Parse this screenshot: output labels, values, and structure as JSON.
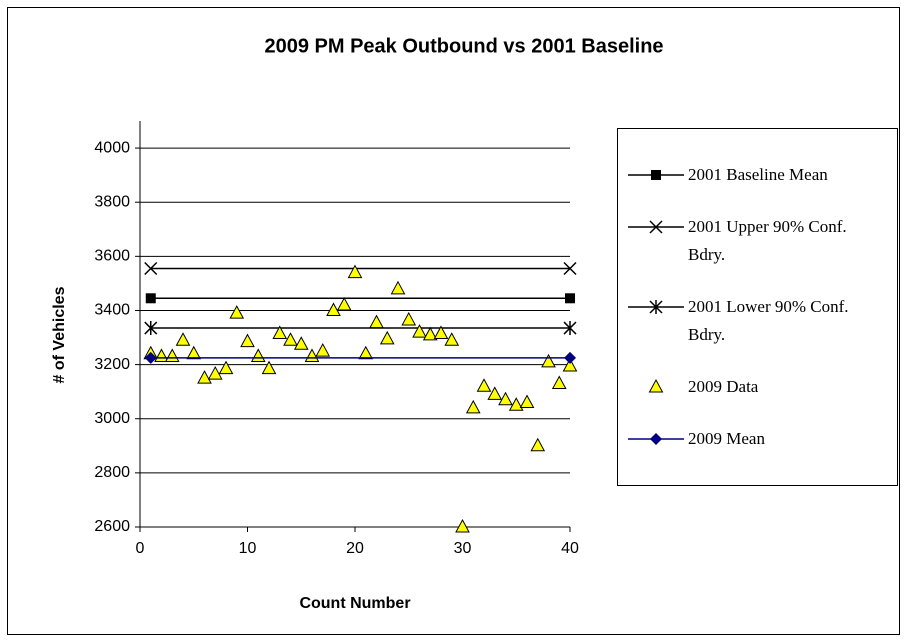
{
  "chart_data": {
    "type": "scatter",
    "title": "2009 PM Peak Outbound vs 2001 Baseline",
    "x_label": "Count Number",
    "y_label": "# of Vehicles",
    "xlim": [
      0,
      40
    ],
    "xticks": [
      0,
      10,
      20,
      30,
      40
    ],
    "ylim": [
      2600,
      4100
    ],
    "yticks": [
      2600,
      2800,
      3000,
      3200,
      3400,
      3600,
      3800,
      4000
    ],
    "grid": true,
    "legend": "right",
    "series": [
      {
        "name": "2001 Baseline Mean",
        "color": "#000000",
        "marker": "square",
        "line": true,
        "x": [
          1,
          40
        ],
        "values": [
          3445,
          3445
        ]
      },
      {
        "name": "2001 Upper 90% Conf. Bdry.",
        "color": "#000000",
        "marker": "x",
        "line": true,
        "x": [
          1,
          40
        ],
        "values": [
          3555,
          3555
        ]
      },
      {
        "name": "2001 Lower 90% Conf. Bdry.",
        "color": "#000000",
        "marker": "asterisk",
        "line": true,
        "x": [
          1,
          40
        ],
        "values": [
          3335,
          3335
        ]
      },
      {
        "name": "2009 Data",
        "color": "#ffff00",
        "marker": "triangle",
        "line": false,
        "x": [
          1,
          2,
          3,
          4,
          5,
          6,
          7,
          8,
          9,
          10,
          11,
          12,
          13,
          14,
          15,
          16,
          17,
          18,
          19,
          20,
          21,
          22,
          23,
          24,
          25,
          26,
          27,
          28,
          29,
          30,
          31,
          32,
          33,
          34,
          35,
          36,
          37,
          38,
          39,
          40
        ],
        "values": [
          3240,
          3230,
          3230,
          3290,
          3240,
          3150,
          3165,
          3185,
          3390,
          3285,
          3230,
          3185,
          3315,
          3290,
          3275,
          3230,
          3250,
          3400,
          3420,
          3540,
          3240,
          3355,
          3295,
          3480,
          3365,
          3320,
          3310,
          3315,
          3290,
          2600,
          3040,
          3120,
          3090,
          3070,
          3050,
          3060,
          2900,
          3210,
          3130,
          3195
        ]
      },
      {
        "name": "2009 Mean",
        "color": "#000080",
        "marker": "diamond",
        "line": true,
        "x": [
          1,
          40
        ],
        "values": [
          3225,
          3225
        ]
      }
    ]
  }
}
